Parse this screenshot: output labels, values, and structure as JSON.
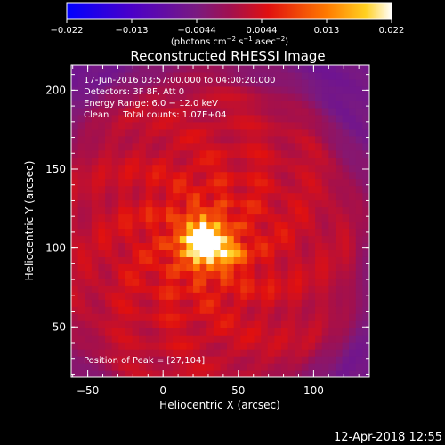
{
  "chart_data": {
    "type": "heatmap",
    "title": "Reconstructed RHESSI Image",
    "xlabel": "Heliocentric X (arcsec)",
    "ylabel": "Heliocentric Y (arcsec)",
    "xlim": [
      -61,
      137
    ],
    "ylim": [
      18,
      216
    ],
    "x_ticks": [
      -50,
      0,
      50,
      100
    ],
    "y_ticks": [
      50,
      100,
      150,
      200
    ],
    "colorbar": {
      "ticks": [
        "−0.022",
        "−0.013",
        "−0.0044",
        "0.0044",
        "0.013",
        "0.022"
      ],
      "range": [
        -0.022,
        0.022
      ],
      "unit_label": "(photons cm",
      "unit_sup1": "−2",
      "unit_mid1": " s",
      "unit_sup2": "−1",
      "unit_mid2": " asec",
      "unit_sup3": "−2",
      "unit_end": ")"
    },
    "annotations": [
      "17-Jun-2016 03:57:00.000 to 04:00:20.000",
      "Detectors: 3F 8F, Att 0",
      "Energy Range: 6.0 − 12.0 keV",
      "Clean     Total counts: 1.07E+04"
    ],
    "peak_label": "Position of Peak = [27,104]",
    "peak": {
      "x": 27,
      "y": 104,
      "value": 0.022
    },
    "secondary_peak": {
      "x": 45,
      "y": 96,
      "value": 0.016
    },
    "grid": false
  },
  "footer": {
    "timestamp": "12-Apr-2018 12:55"
  }
}
